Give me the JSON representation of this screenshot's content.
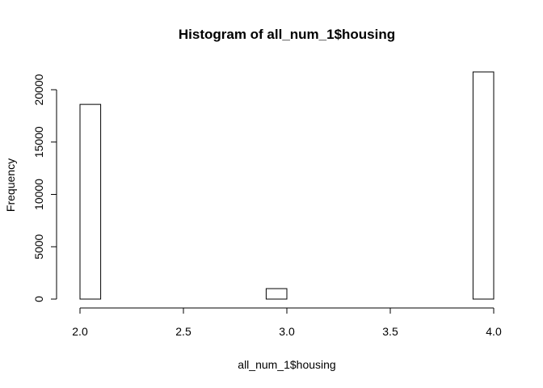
{
  "chart_data": {
    "type": "bar",
    "title": "Histogram of all_num_1$housing",
    "xlabel": "all_num_1$housing",
    "ylabel": "Frequency",
    "xlim": [
      2.0,
      4.0
    ],
    "ylim": [
      0,
      20000
    ],
    "x_ticks": [
      "2.0",
      "2.5",
      "3.0",
      "3.5",
      "4.0"
    ],
    "x_tick_values": [
      2.0,
      2.5,
      3.0,
      3.5,
      4.0
    ],
    "y_ticks": [
      "0",
      "5000",
      "10000",
      "15000",
      "20000"
    ],
    "y_tick_values": [
      0,
      5000,
      10000,
      15000,
      20000
    ],
    "bins": [
      {
        "start": 2.0,
        "end": 2.1,
        "count": 18600
      },
      {
        "start": 2.1,
        "end": 2.2,
        "count": 0
      },
      {
        "start": 2.2,
        "end": 2.3,
        "count": 0
      },
      {
        "start": 2.3,
        "end": 2.4,
        "count": 0
      },
      {
        "start": 2.4,
        "end": 2.5,
        "count": 0
      },
      {
        "start": 2.5,
        "end": 2.6,
        "count": 0
      },
      {
        "start": 2.6,
        "end": 2.7,
        "count": 0
      },
      {
        "start": 2.7,
        "end": 2.8,
        "count": 0
      },
      {
        "start": 2.8,
        "end": 2.9,
        "count": 0
      },
      {
        "start": 2.9,
        "end": 3.0,
        "count": 1000
      },
      {
        "start": 3.0,
        "end": 3.1,
        "count": 0
      },
      {
        "start": 3.1,
        "end": 3.2,
        "count": 0
      },
      {
        "start": 3.2,
        "end": 3.3,
        "count": 0
      },
      {
        "start": 3.3,
        "end": 3.4,
        "count": 0
      },
      {
        "start": 3.4,
        "end": 3.5,
        "count": 0
      },
      {
        "start": 3.5,
        "end": 3.6,
        "count": 0
      },
      {
        "start": 3.6,
        "end": 3.7,
        "count": 0
      },
      {
        "start": 3.7,
        "end": 3.8,
        "count": 0
      },
      {
        "start": 3.8,
        "end": 3.9,
        "count": 0
      },
      {
        "start": 3.9,
        "end": 4.0,
        "count": 21700
      }
    ],
    "bar_fill": "#ffffff",
    "bar_stroke": "#000000",
    "grid": false
  }
}
